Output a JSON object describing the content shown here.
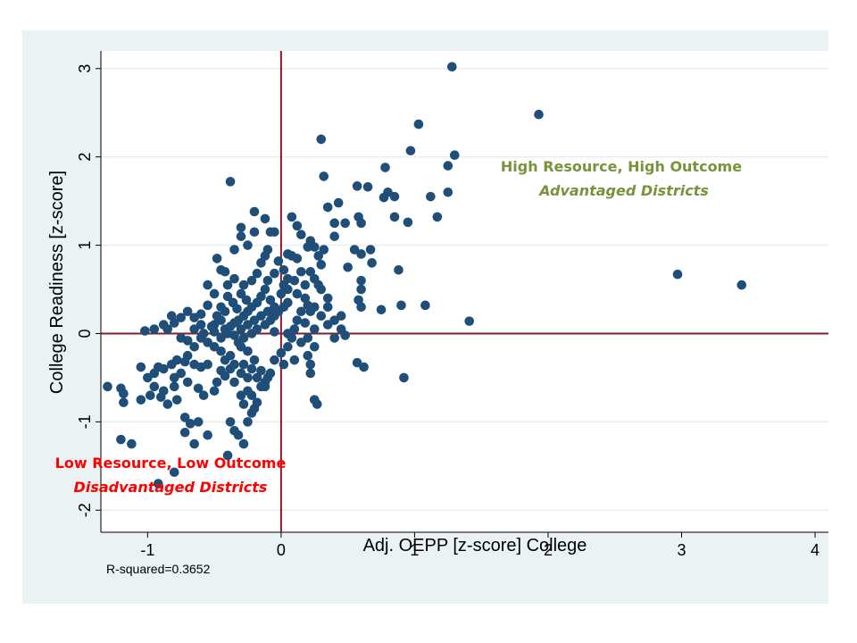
{
  "chart_data": {
    "type": "scatter",
    "xlabel": "Adj. OEPP [z-score] College",
    "ylabel": "College Readiness [z-score]",
    "xlim": [
      -1.35,
      4.1
    ],
    "ylim": [
      -2.25,
      3.2
    ],
    "xticks": [
      -1,
      0,
      1,
      2,
      3,
      4
    ],
    "yticks": [
      -2,
      -1,
      0,
      1,
      2,
      3
    ],
    "tick_labels_x": [
      "-1",
      "0",
      "1",
      "2",
      "3",
      "4"
    ],
    "tick_labels_y": [
      "-2",
      "-1",
      "0",
      "1",
      "2",
      "3"
    ],
    "grid": "horizontal",
    "reference_lines": {
      "x": 0,
      "y": 0
    },
    "note": "R-squared=0.3652",
    "annotations": [
      {
        "line1": "High Resource, High Outcome",
        "line2": "Advantaged Districts",
        "at": [
          2.7,
          1.76
        ]
      },
      {
        "line1": "Low Resource, Low Outcome",
        "line2": "Disadvantaged Districts",
        "at": [
          -0.97,
          -1.8
        ]
      }
    ],
    "colors": {
      "points": "#1f4e79",
      "reference_lines": "#8b1a2b",
      "grid": "#e6eef0",
      "background": "#eaf2f3",
      "plot_bg": "#ffffff",
      "high_label": "#77933c",
      "low_label": "#ff0000"
    },
    "points": [
      [
        1.28,
        3.02
      ],
      [
        1.93,
        2.48
      ],
      [
        0.3,
        2.2
      ],
      [
        1.03,
        2.37
      ],
      [
        0.97,
        2.07
      ],
      [
        1.3,
        2.02
      ],
      [
        1.25,
        1.9
      ],
      [
        1.25,
        1.6
      ],
      [
        1.12,
        1.55
      ],
      [
        1.17,
        1.32
      ],
      [
        0.32,
        1.78
      ],
      [
        0.57,
        1.67
      ],
      [
        0.65,
        1.66
      ],
      [
        0.78,
        1.88
      ],
      [
        0.8,
        1.6
      ],
      [
        0.77,
        1.54
      ],
      [
        0.85,
        1.55
      ],
      [
        0.85,
        1.32
      ],
      [
        0.95,
        1.26
      ],
      [
        0.43,
        1.48
      ],
      [
        0.35,
        1.43
      ],
      [
        0.4,
        1.25
      ],
      [
        0.48,
        1.25
      ],
      [
        0.58,
        1.32
      ],
      [
        0.6,
        1.25
      ],
      [
        0.4,
        1.1
      ],
      [
        0.55,
        0.95
      ],
      [
        0.6,
        0.9
      ],
      [
        0.67,
        0.95
      ],
      [
        0.68,
        0.8
      ],
      [
        0.5,
        0.75
      ],
      [
        0.6,
        0.6
      ],
      [
        0.6,
        0.5
      ],
      [
        0.58,
        0.38
      ],
      [
        0.6,
        0.3
      ],
      [
        0.75,
        0.27
      ],
      [
        0.88,
        0.72
      ],
      [
        0.9,
        0.32
      ],
      [
        1.08,
        0.32
      ],
      [
        1.41,
        0.14
      ],
      [
        0.92,
        -0.5
      ],
      [
        0.57,
        -0.33
      ],
      [
        0.62,
        -0.38
      ],
      [
        2.97,
        0.67
      ],
      [
        3.45,
        0.55
      ],
      [
        -0.38,
        1.72
      ],
      [
        -0.2,
        1.38
      ],
      [
        -0.12,
        1.3
      ],
      [
        -0.2,
        1.15
      ],
      [
        -0.08,
        1.15
      ],
      [
        -0.3,
        1.2
      ],
      [
        -0.3,
        1.1
      ],
      [
        -0.25,
        1.0
      ],
      [
        -0.35,
        0.95
      ],
      [
        -0.05,
        1.15
      ],
      [
        -0.1,
        0.95
      ],
      [
        0.08,
        1.32
      ],
      [
        0.12,
        1.22
      ],
      [
        0.15,
        1.12
      ],
      [
        0.2,
        0.98
      ],
      [
        0.25,
        0.98
      ],
      [
        0.22,
        1.05
      ],
      [
        0.08,
        0.88
      ],
      [
        0.12,
        0.85
      ],
      [
        0.15,
        0.7
      ],
      [
        0.22,
        0.7
      ],
      [
        0.25,
        0.62
      ],
      [
        0.18,
        0.55
      ],
      [
        0.28,
        0.55
      ],
      [
        0.3,
        0.5
      ],
      [
        0.35,
        0.4
      ],
      [
        0.35,
        0.3
      ],
      [
        0.25,
        0.3
      ],
      [
        0.22,
        0.25
      ],
      [
        0.3,
        0.2
      ],
      [
        0.4,
        0.15
      ],
      [
        0.45,
        0.2
      ],
      [
        0.35,
        0.1
      ],
      [
        0.25,
        0.05
      ],
      [
        0.2,
        -0.05
      ],
      [
        0.15,
        -0.1
      ],
      [
        0.25,
        -0.15
      ],
      [
        0.2,
        -0.25
      ],
      [
        0.22,
        -0.35
      ],
      [
        0.22,
        -0.45
      ],
      [
        0.25,
        -0.75
      ],
      [
        0.27,
        -0.8
      ],
      [
        0.4,
        -0.05
      ],
      [
        -0.48,
        0.85
      ],
      [
        -0.45,
        0.72
      ],
      [
        -0.55,
        0.55
      ],
      [
        -0.5,
        0.45
      ],
      [
        -0.4,
        0.42
      ],
      [
        -0.45,
        0.3
      ],
      [
        -0.55,
        0.32
      ],
      [
        -0.6,
        0.22
      ],
      [
        -0.65,
        0.18
      ],
      [
        -0.7,
        0.25
      ],
      [
        -0.75,
        0.18
      ],
      [
        -0.8,
        0.12
      ],
      [
        -0.82,
        0.2
      ],
      [
        -0.88,
        0.1
      ],
      [
        -0.85,
        0.05
      ],
      [
        -0.95,
        0.05
      ],
      [
        -1.02,
        0.03
      ],
      [
        -0.75,
        -0.05
      ],
      [
        -0.7,
        -0.08
      ],
      [
        -0.6,
        -0.05
      ],
      [
        -0.55,
        -0.1
      ],
      [
        -0.5,
        -0.15
      ],
      [
        -0.45,
        -0.2
      ],
      [
        -0.55,
        -0.35
      ],
      [
        -0.6,
        -0.38
      ],
      [
        -0.65,
        -0.35
      ],
      [
        -0.72,
        -0.32
      ],
      [
        -0.78,
        -0.3
      ],
      [
        -0.82,
        -0.35
      ],
      [
        -0.88,
        -0.4
      ],
      [
        -0.92,
        -0.38
      ],
      [
        -0.95,
        -0.45
      ],
      [
        -1.0,
        -0.5
      ],
      [
        -1.05,
        -0.38
      ],
      [
        -0.95,
        -0.6
      ],
      [
        -0.88,
        -0.65
      ],
      [
        -0.8,
        -0.6
      ],
      [
        -0.78,
        -0.75
      ],
      [
        -0.85,
        -0.8
      ],
      [
        -0.9,
        -0.72
      ],
      [
        -0.98,
        -0.7
      ],
      [
        -1.05,
        -0.75
      ],
      [
        -0.7,
        -0.55
      ],
      [
        -0.62,
        -0.62
      ],
      [
        -0.58,
        -0.7
      ],
      [
        -0.5,
        -0.65
      ],
      [
        -0.48,
        -0.55
      ],
      [
        -0.42,
        -0.48
      ],
      [
        -0.38,
        -0.4
      ],
      [
        -0.45,
        -0.42
      ],
      [
        -0.72,
        -0.95
      ],
      [
        -0.68,
        -1.02
      ],
      [
        -0.62,
        -1.0
      ],
      [
        -0.72,
        -1.12
      ],
      [
        -0.65,
        -1.25
      ],
      [
        -0.55,
        -1.15
      ],
      [
        -1.3,
        -0.6
      ],
      [
        -1.2,
        -0.62
      ],
      [
        -1.18,
        -0.68
      ],
      [
        -1.18,
        -0.78
      ],
      [
        -1.2,
        -1.2
      ],
      [
        -1.12,
        -1.25
      ],
      [
        -0.92,
        -1.7
      ],
      [
        -0.8,
        -1.57
      ],
      [
        -0.4,
        -1.38
      ],
      [
        -0.38,
        -1.0
      ],
      [
        -0.35,
        -1.1
      ],
      [
        -0.32,
        -1.15
      ],
      [
        -0.28,
        -1.25
      ],
      [
        -0.25,
        -1.0
      ],
      [
        -0.22,
        -0.9
      ],
      [
        -0.2,
        -0.85
      ],
      [
        -0.18,
        -0.78
      ],
      [
        -0.15,
        -0.6
      ],
      [
        -0.12,
        -0.55
      ],
      [
        -0.1,
        -0.5
      ],
      [
        -0.08,
        -0.45
      ],
      [
        -0.15,
        -0.42
      ],
      [
        -0.25,
        -0.5
      ],
      [
        -0.3,
        -0.45
      ],
      [
        -0.35,
        -0.55
      ],
      [
        -0.2,
        -0.3
      ],
      [
        -0.25,
        -0.2
      ],
      [
        -0.3,
        -0.15
      ],
      [
        -0.32,
        -0.1
      ],
      [
        -0.28,
        -0.05
      ],
      [
        -0.22,
        0.0
      ],
      [
        -0.18,
        0.05
      ],
      [
        -0.12,
        0.1
      ],
      [
        -0.08,
        0.15
      ],
      [
        -0.05,
        0.2
      ],
      [
        -0.02,
        0.25
      ],
      [
        0.02,
        0.3
      ],
      [
        0.05,
        0.35
      ],
      [
        0.0,
        0.45
      ],
      [
        0.02,
        0.55
      ],
      [
        0.05,
        0.62
      ],
      [
        0.02,
        0.72
      ],
      [
        -0.02,
        0.82
      ],
      [
        0.05,
        0.9
      ],
      [
        -0.1,
        0.6
      ],
      [
        -0.12,
        0.5
      ],
      [
        -0.15,
        0.42
      ],
      [
        -0.18,
        0.35
      ],
      [
        -0.22,
        0.3
      ],
      [
        -0.25,
        0.25
      ],
      [
        -0.28,
        0.2
      ],
      [
        -0.32,
        0.15
      ],
      [
        -0.35,
        0.12
      ],
      [
        -0.38,
        0.08
      ],
      [
        -0.42,
        0.05
      ],
      [
        -0.4,
        0.0
      ],
      [
        -0.35,
        -0.02
      ],
      [
        -0.3,
        0.05
      ],
      [
        -0.25,
        0.1
      ],
      [
        -0.2,
        0.15
      ],
      [
        -0.15,
        0.2
      ],
      [
        -0.1,
        0.25
      ],
      [
        -0.05,
        0.3
      ],
      [
        -0.3,
        0.45
      ],
      [
        -0.28,
        0.55
      ],
      [
        -0.22,
        0.6
      ],
      [
        -0.18,
        0.68
      ],
      [
        -0.15,
        0.8
      ],
      [
        -0.12,
        0.88
      ],
      [
        -0.35,
        0.62
      ],
      [
        -0.4,
        0.55
      ],
      [
        -0.42,
        0.7
      ],
      [
        -0.05,
        0.02
      ],
      [
        0.05,
        0.0
      ],
      [
        0.1,
        0.05
      ],
      [
        0.08,
        -0.05
      ],
      [
        0.05,
        -0.15
      ],
      [
        0.0,
        -0.22
      ],
      [
        -0.05,
        -0.3
      ],
      [
        0.02,
        -0.35
      ],
      [
        0.1,
        -0.3
      ],
      [
        0.12,
        0.15
      ],
      [
        0.15,
        0.25
      ],
      [
        0.18,
        0.12
      ],
      [
        -0.42,
        0.25
      ],
      [
        -0.45,
        0.15
      ],
      [
        -0.5,
        0.1
      ],
      [
        -0.48,
        0.2
      ],
      [
        -0.36,
        0.35
      ],
      [
        -0.33,
        0.28
      ],
      [
        -0.26,
        0.38
      ],
      [
        -0.5,
        0.02
      ],
      [
        -0.45,
        -0.05
      ],
      [
        -0.38,
        -0.25
      ],
      [
        -0.42,
        -0.3
      ],
      [
        -0.35,
        -0.35
      ],
      [
        -0.28,
        -0.35
      ],
      [
        -0.22,
        -0.4
      ],
      [
        -0.18,
        -0.5
      ],
      [
        -0.12,
        -0.6
      ],
      [
        -0.25,
        -0.65
      ],
      [
        -0.3,
        -0.7
      ],
      [
        -0.28,
        -0.8
      ],
      [
        -0.22,
        -0.7
      ],
      [
        -0.65,
        0.05
      ],
      [
        -0.6,
        0.1
      ],
      [
        -0.58,
        0.0
      ],
      [
        -0.52,
        0.08
      ],
      [
        -0.65,
        -0.15
      ],
      [
        -0.7,
        -0.25
      ],
      [
        -0.75,
        -0.45
      ],
      [
        -0.8,
        -0.5
      ],
      [
        0.05,
        0.5
      ],
      [
        0.1,
        0.6
      ],
      [
        0.12,
        0.45
      ],
      [
        0.18,
        0.4
      ],
      [
        0.2,
        0.32
      ],
      [
        -0.08,
        0.38
      ],
      [
        0.48,
        -0.02
      ],
      [
        0.45,
        0.05
      ],
      [
        -0.05,
        0.68
      ],
      [
        0.28,
        0.88
      ],
      [
        0.32,
        0.95
      ],
      [
        0.3,
        0.78
      ]
    ]
  }
}
